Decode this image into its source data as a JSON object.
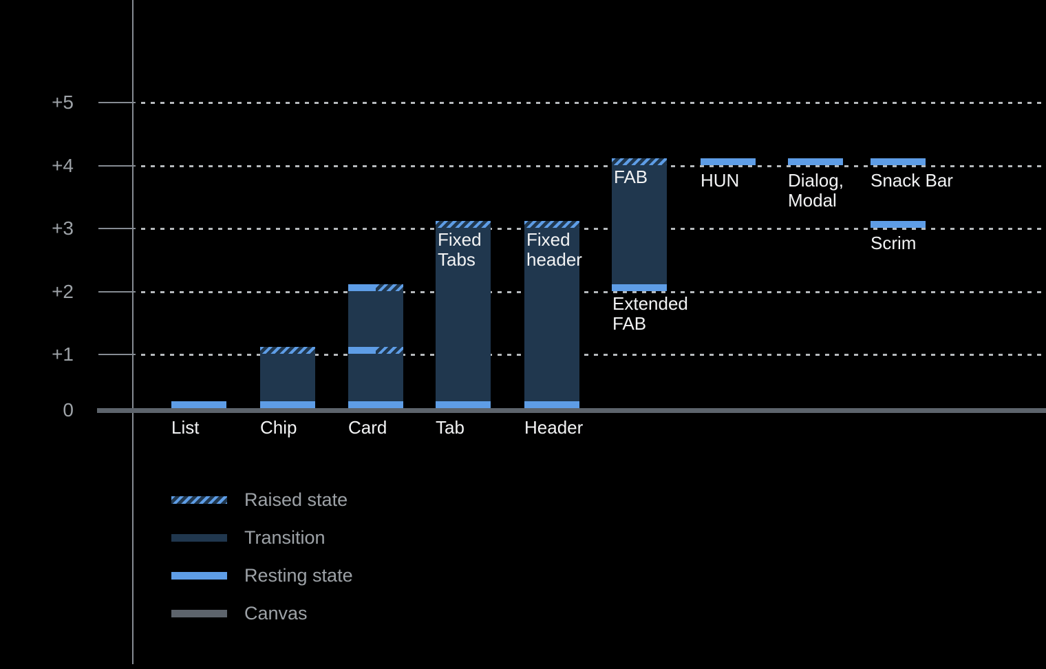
{
  "chart_data": {
    "type": "bar",
    "description": "Elevation diagram of UI components: floating bars show resting elevation, navy columns show transition range, hatched caps show raised state.",
    "y_axis": {
      "ticks": [
        {
          "label": "0",
          "value": 0
        },
        {
          "label": "+1",
          "value": 1
        },
        {
          "label": "+2",
          "value": 2
        },
        {
          "label": "+3",
          "value": 3
        },
        {
          "label": "+4",
          "value": 4
        },
        {
          "label": "+5",
          "value": 5
        }
      ],
      "range": [
        0,
        5
      ],
      "gridlines": "dotted"
    },
    "legend": [
      {
        "label": "Raised state",
        "swatch": "hatch"
      },
      {
        "label": "Transition",
        "swatch": "navy"
      },
      {
        "label": "Resting state",
        "swatch": "blue"
      },
      {
        "label": "Canvas",
        "swatch": "gray"
      }
    ],
    "components": [
      {
        "name": "List",
        "axis_label": "List",
        "resting": 0
      },
      {
        "name": "Chip",
        "axis_label": "Chip",
        "resting": 0,
        "transition": [
          0,
          1
        ],
        "raised": 1
      },
      {
        "name": "Card",
        "axis_label": "Card",
        "resting": 0,
        "transition": [
          0,
          2
        ],
        "mixed_resting_raised": [
          1,
          2
        ]
      },
      {
        "name": "Fixed Tabs",
        "axis_label": "Tab",
        "resting": 0,
        "transition": [
          0,
          3
        ],
        "raised": 3,
        "labels": [
          {
            "lines": [
              "Fixed",
              "Tabs"
            ],
            "position": "inside-top"
          }
        ]
      },
      {
        "name": "Fixed header",
        "axis_label": "Header",
        "resting": 0,
        "transition": [
          0,
          3
        ],
        "raised": 3,
        "labels": [
          {
            "lines": [
              "Fixed",
              "header"
            ],
            "position": "inside-top"
          }
        ]
      },
      {
        "name": "FAB",
        "resting": 2,
        "transition": [
          2,
          4
        ],
        "raised": 4,
        "labels": [
          {
            "lines": [
              "FAB"
            ],
            "position": "inside-top"
          },
          {
            "lines": [
              "Extended",
              "FAB"
            ],
            "position": "below-bar"
          }
        ]
      },
      {
        "name": "HUN",
        "resting": 4,
        "labels": [
          {
            "lines": [
              "HUN"
            ],
            "position": "below-band"
          }
        ]
      },
      {
        "name": "Dialog, Modal",
        "resting": 4,
        "labels": [
          {
            "lines": [
              "Dialog,",
              "Modal"
            ],
            "position": "below-band"
          }
        ]
      },
      {
        "name": "Snack Bar",
        "resting": 4,
        "labels": [
          {
            "lines": [
              "Snack Bar"
            ],
            "position": "below-band"
          }
        ]
      },
      {
        "name": "Scrim",
        "resting": 3,
        "labels": [
          {
            "lines": [
              "Scrim"
            ],
            "position": "below-band"
          }
        ]
      }
    ],
    "colors": {
      "background": "#000000",
      "resting_blue": "#5E9DE6",
      "transition_navy": "#20374E",
      "canvas_gray": "#5D646C",
      "axis_gray": "#868C93",
      "gridline_gray": "#B5B9BC",
      "tick_text_gray": "#9DA2A7",
      "label_white": "#F2F3F4"
    }
  }
}
